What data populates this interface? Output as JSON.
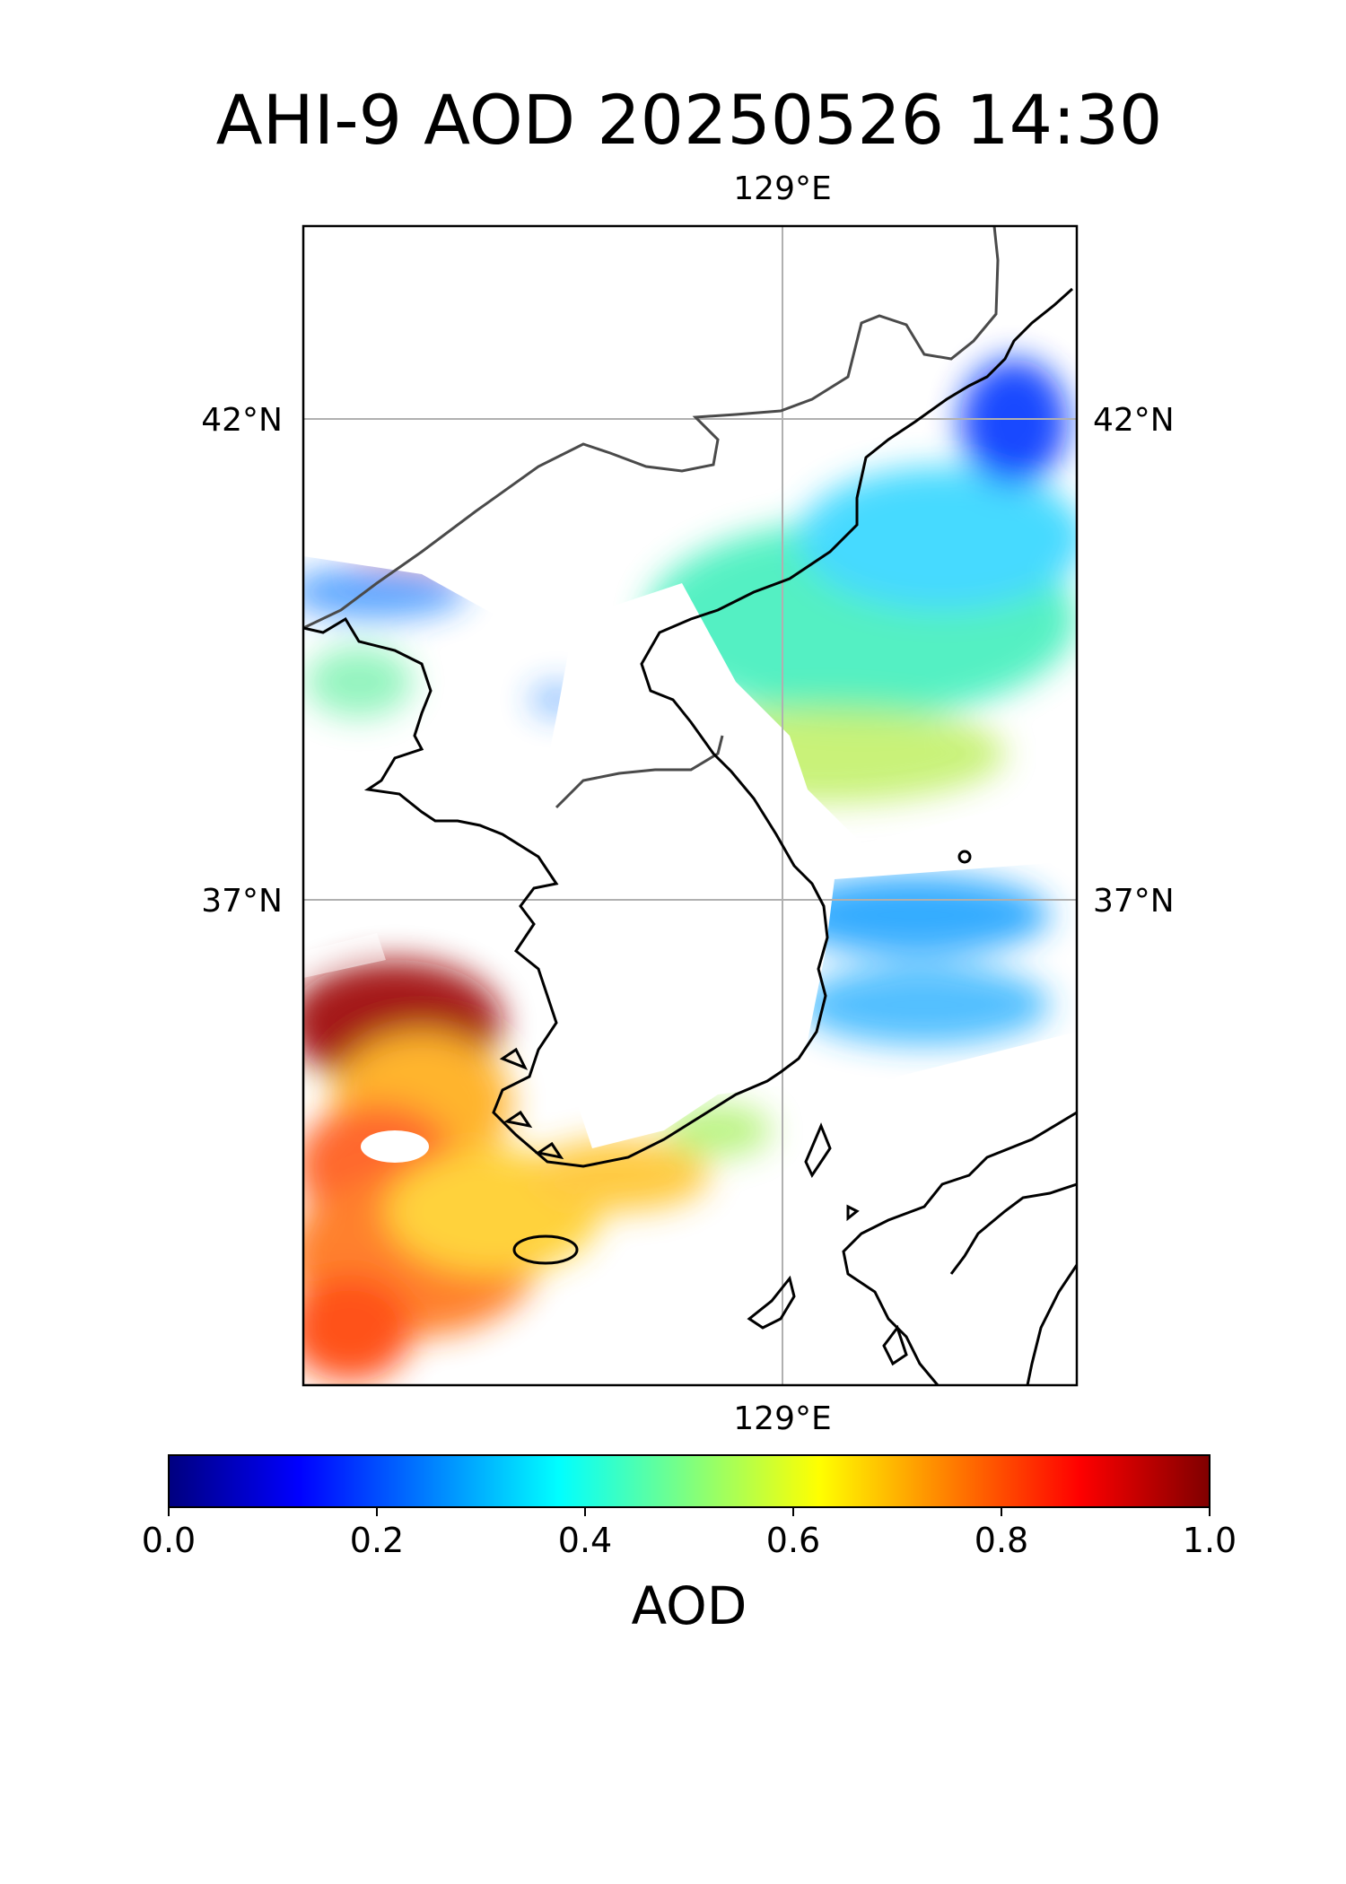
{
  "title": "AHI-9 AOD 20250526 14:30",
  "map": {
    "lon_range": [
      123.5,
      131.5
    ],
    "lat_range": [
      32.0,
      44.0
    ],
    "lon_gridline": 129,
    "lat_gridlines": [
      42,
      37
    ],
    "lon_label_top": "129°E",
    "lon_label_bottom": "129°E",
    "lat_labels_left": [
      "42°N",
      "37°N"
    ],
    "lat_labels_right": [
      "42°N",
      "37°N"
    ],
    "gridline_color": "#b0b0b0"
  },
  "colorbar": {
    "label": "AOD",
    "colormap": "jet",
    "vmin": 0.0,
    "vmax": 1.0,
    "ticks": [
      "0.0",
      "0.2",
      "0.4",
      "0.6",
      "0.8",
      "1.0"
    ],
    "stops": [
      "#00007f",
      "#0000ff",
      "#007fff",
      "#00ffff",
      "#7fff7f",
      "#ffff00",
      "#ff7f00",
      "#ff0000",
      "#7f0000"
    ]
  }
}
